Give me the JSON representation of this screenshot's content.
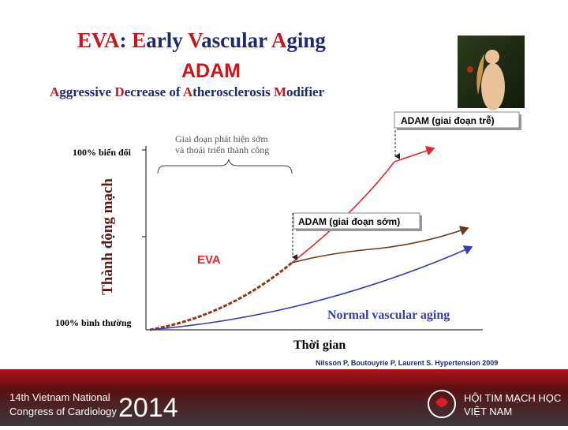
{
  "header": {
    "title": "EVA: Early Vascular Aging",
    "acronym": "ADAM",
    "subtitle": "Aggressive Decrease of Atherosclerosis Modifier"
  },
  "diagram": {
    "y_axis_label": "Thành động mạch",
    "y_top_label": "100% biến đổi",
    "y_bottom_label": "100%  bình thường",
    "x_axis_label": "Thời gian",
    "brace_label": [
      "Giai đoạn phát hiện sớm",
      "và thoái triển thành công"
    ],
    "late_box": "ADAM (giai đoạn trễ)",
    "early_box": "ADAM (giai đoạn sớm)",
    "eva_label": "EVA",
    "normal_label": "Normal vascular aging",
    "citation": "Nilsson P, Boutouyrie P, Laurent S. Hypertension 2009"
  },
  "footer": {
    "congress_line1": "14th Vietnam National",
    "congress_line2": "Congress of Cardiology",
    "year": "2014",
    "society_line1": "HỘI TIM MẠCH HỌC",
    "society_line2": "VIỆT NAM"
  }
}
